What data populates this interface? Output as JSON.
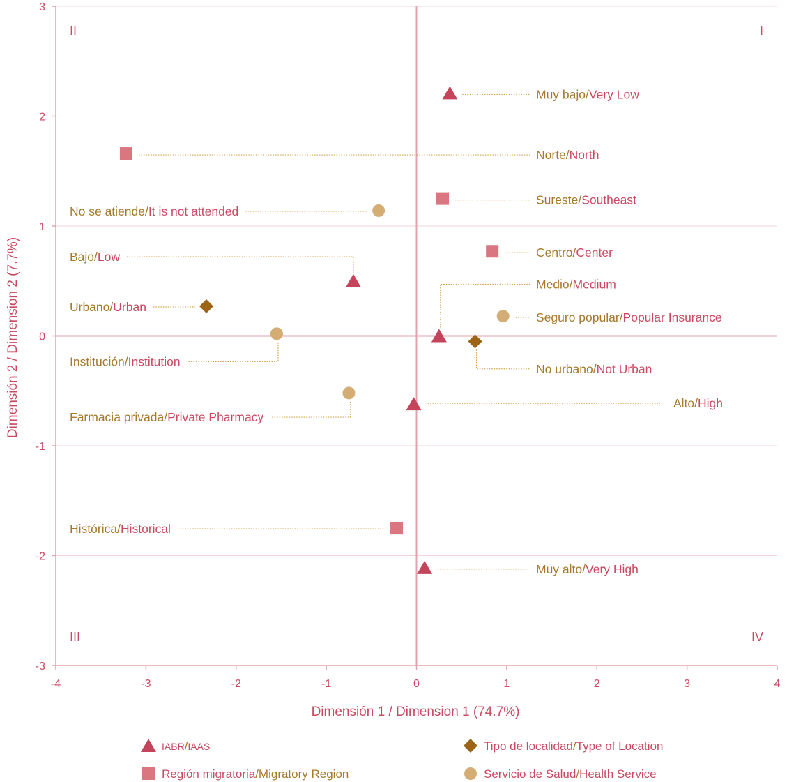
{
  "colors": {
    "axis": "#e3a2ae",
    "grid": "#f1d3d9",
    "pink": "#c94a63",
    "gold": "#a57a2c",
    "triangle": "#c4445b",
    "square": "#d9767f",
    "diamond": "#9c6414",
    "circle": "#d4ad74",
    "leader": "#d1a34e"
  },
  "chart_data": {
    "type": "scatter",
    "xlabel": "Dimensión 1 / Dimension 1 (74.7%)",
    "ylabel": "Dimensión 2 / Dimension 2 (7.7%)",
    "xlim": [
      -4,
      4
    ],
    "ylim": [
      -3,
      3
    ],
    "xticks": [
      "-4",
      "-3",
      "-2",
      "-1",
      "0",
      "1",
      "2",
      "3",
      "4"
    ],
    "yticks": [
      "3",
      "2",
      "1",
      "0",
      "-1",
      "-2",
      "-3"
    ],
    "grid": "horizontal",
    "quadrants": [
      {
        "label": "II",
        "pos": "top-left"
      },
      {
        "label": "I",
        "pos": "top-right"
      },
      {
        "label": "III",
        "pos": "bottom-left"
      },
      {
        "label": "IV",
        "pos": "bottom-right"
      }
    ],
    "series": [
      {
        "name": "IABR/IAAS",
        "name_parts": [
          "IABR",
          "/",
          "IAAS"
        ],
        "marker": "triangle",
        "points": [
          {
            "x": 0.37,
            "y": 2.21,
            "label": [
              "Muy bajo",
              "/",
              "Very Low"
            ],
            "side": "right"
          },
          {
            "x": -0.7,
            "y": 0.5,
            "label": [
              "Bajo",
              "/",
              "Low"
            ],
            "side": "left-elbow"
          },
          {
            "x": 0.25,
            "y": 0.0,
            "label": [
              "Medio",
              "/",
              "Medium"
            ],
            "side": "right-elbow"
          },
          {
            "x": -0.03,
            "y": -0.62,
            "label": [
              "Alto",
              "/",
              "High"
            ],
            "side": "right-far"
          },
          {
            "x": 0.09,
            "y": -2.11,
            "label": [
              "Muy alto",
              "/",
              "Very High"
            ],
            "side": "right"
          }
        ]
      },
      {
        "name": "Región migratoria/Migratory Region",
        "name_parts": [
          "Región migratoria",
          "/",
          "Migratory Region"
        ],
        "marker": "square",
        "points": [
          {
            "x": -3.22,
            "y": 1.66,
            "label": [
              "Norte",
              "/",
              "North"
            ],
            "side": "right"
          },
          {
            "x": 0.29,
            "y": 1.25,
            "label": [
              "Sureste",
              "/",
              "Southeast"
            ],
            "side": "right"
          },
          {
            "x": 0.84,
            "y": 0.77,
            "label": [
              "Centro",
              "/",
              "Center"
            ],
            "side": "right"
          },
          {
            "x": -0.22,
            "y": -1.75,
            "label": [
              "Histórica",
              "/",
              "Historical"
            ],
            "side": "left"
          }
        ]
      },
      {
        "name": "Tipo de localidad/Type of Location",
        "name_parts": [
          "Tipo de localidad",
          "/",
          "Type of Location"
        ],
        "marker": "diamond",
        "points": [
          {
            "x": -2.33,
            "y": 0.27,
            "label": [
              "Urbano",
              "/",
              "Urban"
            ],
            "side": "left"
          },
          {
            "x": 0.65,
            "y": -0.05,
            "label": [
              "No urbano",
              "/",
              "Not Urban"
            ],
            "side": "right-elbow-down"
          }
        ]
      },
      {
        "name": "Servicio de Salud/Health Service",
        "name_parts": [
          "Servicio de Salud",
          "/",
          "Health Service"
        ],
        "marker": "circle",
        "points": [
          {
            "x": -0.42,
            "y": 1.14,
            "label": [
              "No se atiende",
              "/",
              "It is not attended"
            ],
            "side": "left"
          },
          {
            "x": -1.55,
            "y": 0.02,
            "label": [
              "Institución",
              "/",
              "Institution"
            ],
            "side": "left-elbow-down"
          },
          {
            "x": 0.96,
            "y": 0.18,
            "label": [
              "Seguro popular",
              "/",
              "Popular Insurance"
            ],
            "side": "right"
          },
          {
            "x": -0.75,
            "y": -0.52,
            "label": [
              "Farmacia privada",
              "/",
              "Private Pharmacy"
            ],
            "side": "left-elbow-down"
          }
        ]
      }
    ],
    "legend": "bottom"
  }
}
